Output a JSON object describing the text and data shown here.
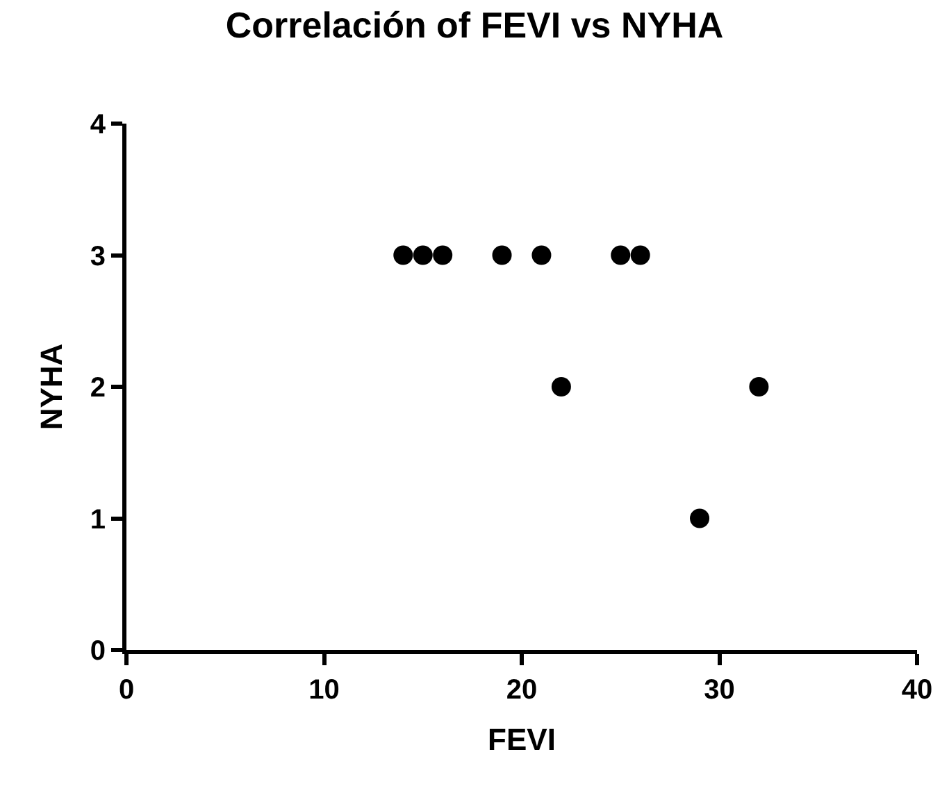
{
  "chart_data": {
    "type": "scatter",
    "title": "Correlación of FEVI vs NYHA",
    "xlabel": "FEVI",
    "ylabel": "NYHA",
    "x": [
      14,
      15,
      16,
      19,
      21,
      22,
      25,
      26,
      29,
      32
    ],
    "series": [
      {
        "color": "#000000",
        "values": [
          3,
          3,
          3,
          3,
          3,
          2,
          3,
          3,
          1,
          2
        ]
      }
    ],
    "xlim": [
      0,
      40
    ],
    "xticks": [
      0,
      10,
      20,
      30,
      40
    ],
    "ylim": [
      0,
      4
    ],
    "yticks": [
      0,
      1,
      2,
      3,
      4
    ],
    "marker": "circle"
  }
}
